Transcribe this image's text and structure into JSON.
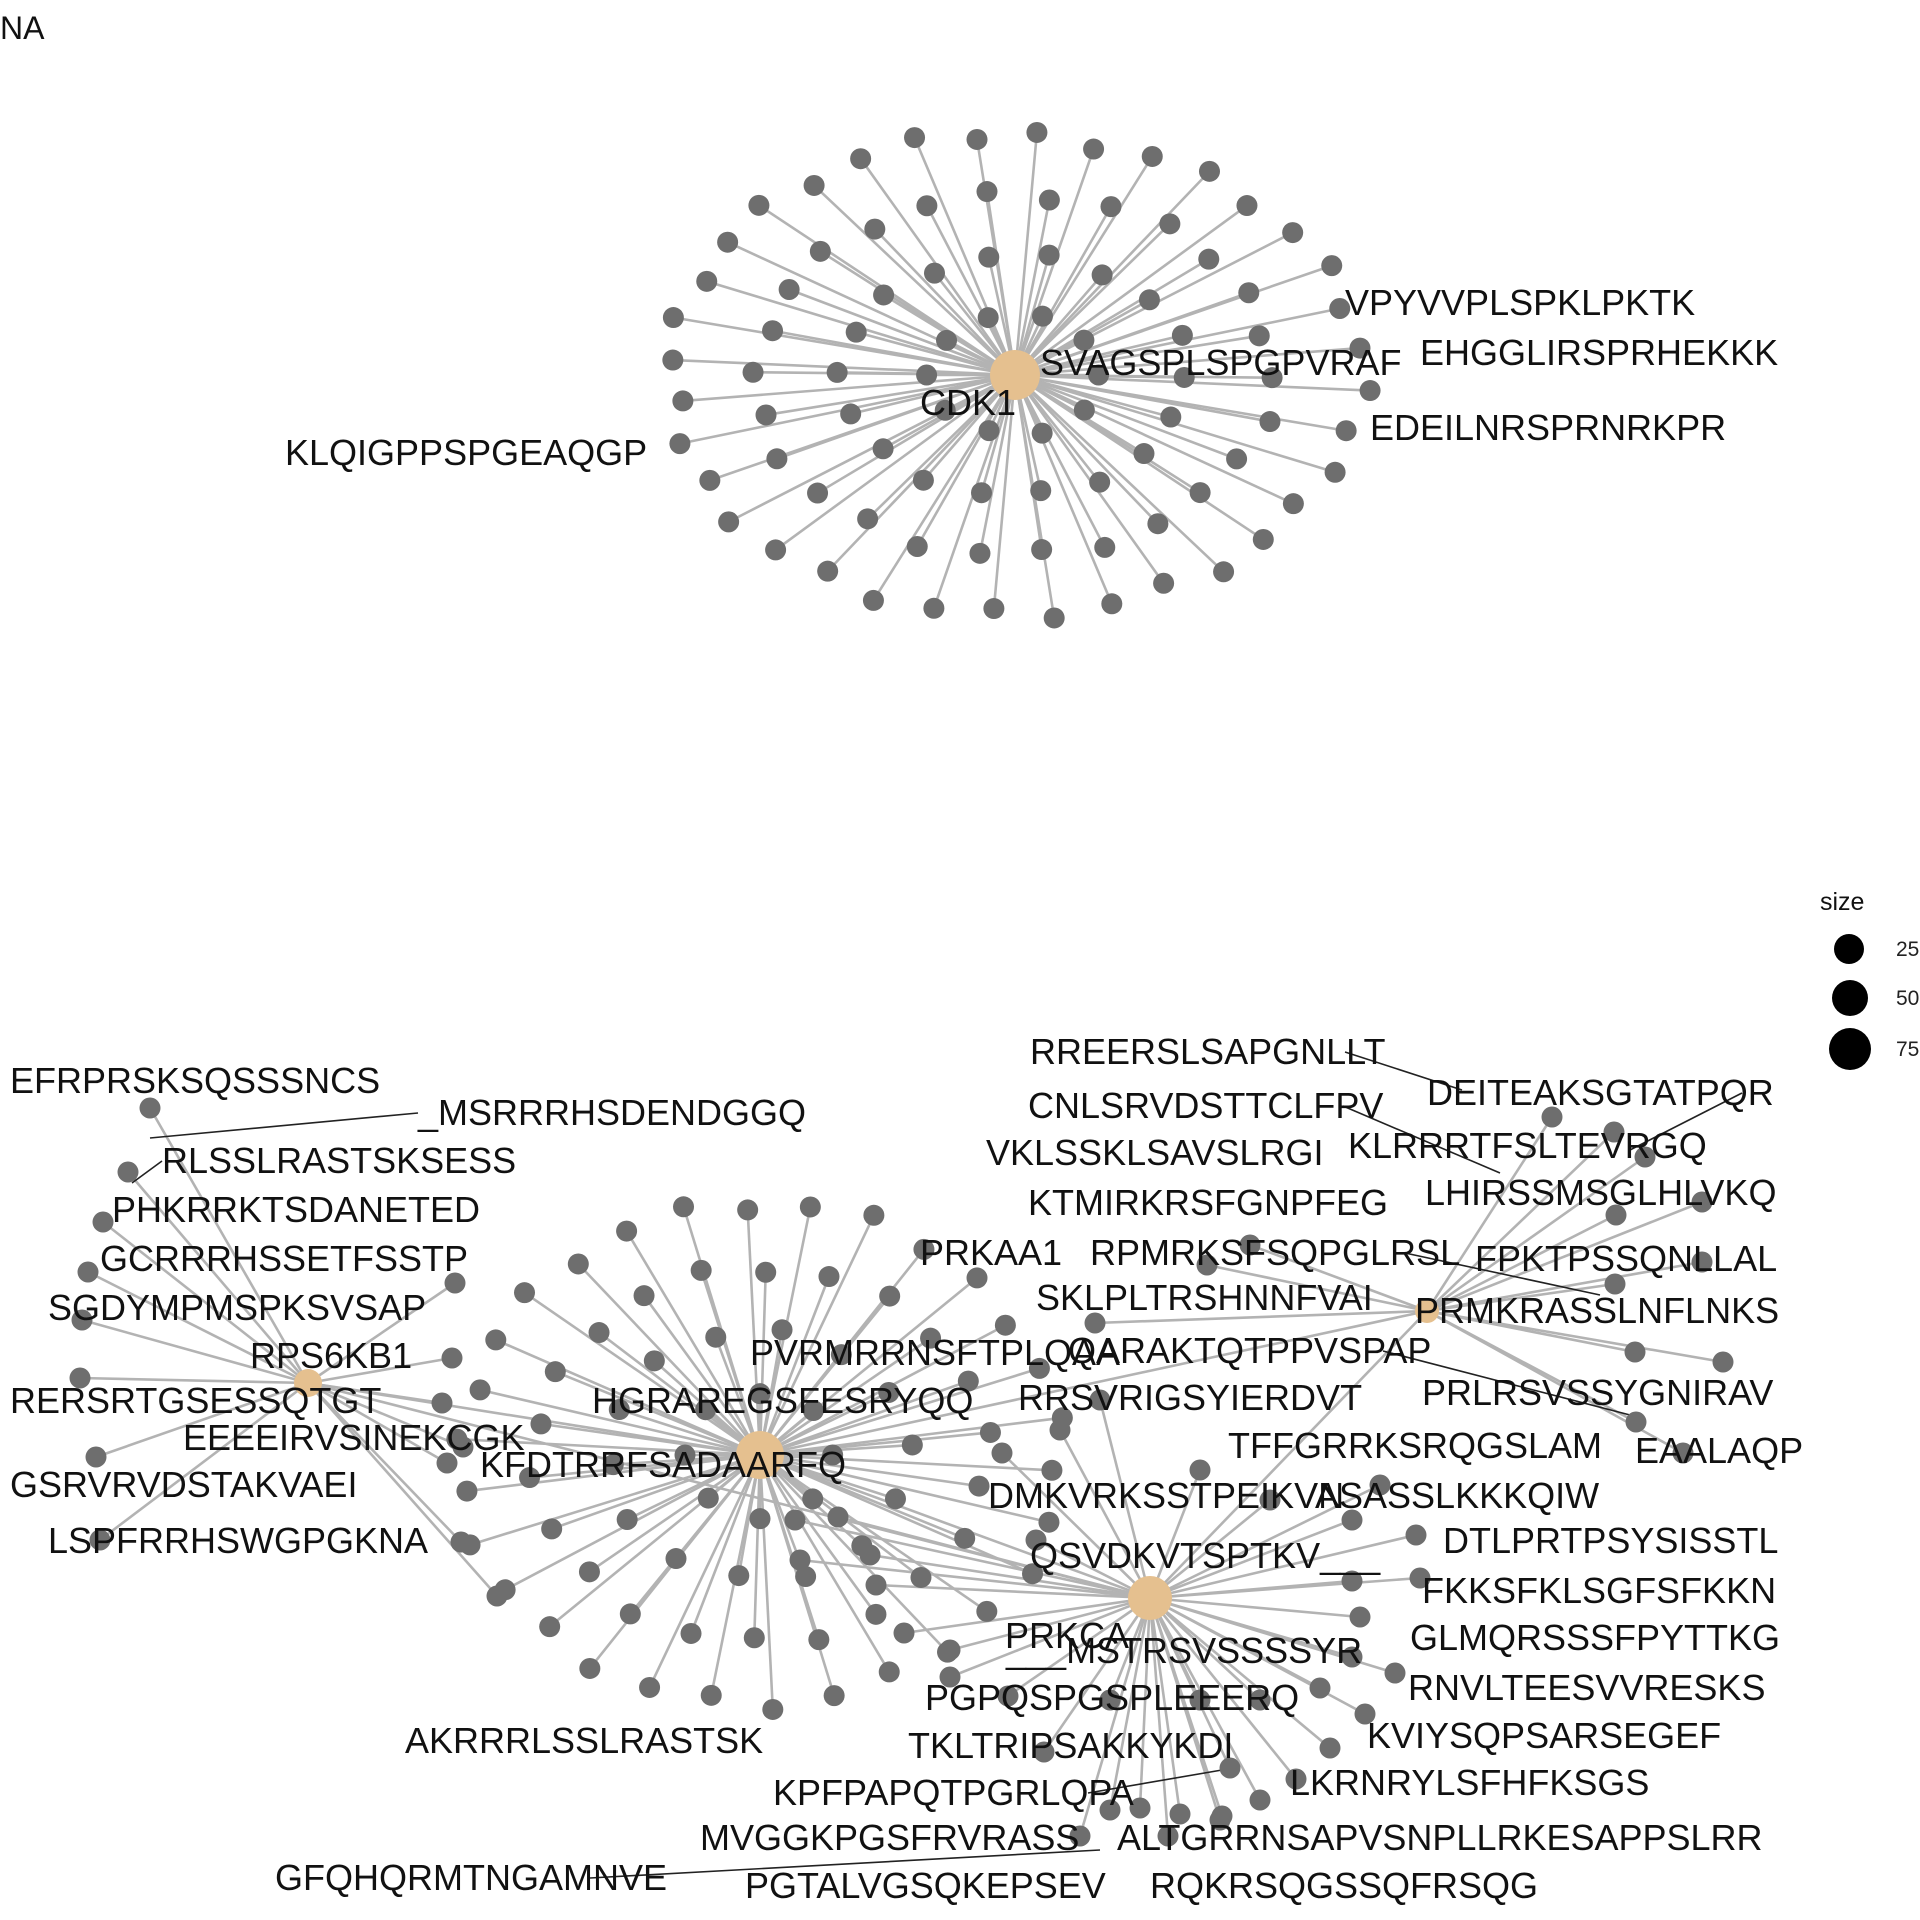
{
  "corner_label": "NA",
  "legend": {
    "title": "size",
    "items": [
      "25",
      "50",
      "75"
    ]
  },
  "colors": {
    "hub": "#E5C08F",
    "leaf": "#6E6E6E",
    "edge": "#B3B3B3",
    "label_line": "#222222",
    "text": "#111111"
  },
  "hubs": [
    "CDK1",
    "PRKCA",
    "RPS6KB1",
    "PRKAA1"
  ],
  "labels": [
    "VPYVVPLSPKLPKTK",
    "SVAGSPLSPGPVRAF",
    "EHGGLIRSPRHEKKK",
    "EDEILNRSPRNRKPR",
    "KLQIGPPSPGEAQGP",
    "EFRPRSKSQSSSNCS",
    "_MSRRRHSDENDGGQ",
    "RLSSLRASTSKSESS",
    "PHKRRKTSDANETED",
    "GCRRRHSSETFSSTP",
    "SGDYMPMSPKSVSAP",
    "RERSRTGSESSQTGT",
    "EEEEIRVSINEKCGK",
    "GSRVRVDSTAKVAEI",
    "LSPFRRHSWGPGKNA",
    "AKRRRLSSLRASTSK",
    "HGRAREGSFESRYQQ",
    "KFDTRRFSADAARFQ",
    "PVRMRRNSFTPLQAA",
    "RREERSLSAPGNLLT",
    "DEITEAKSGTATPQR",
    "CNLSRVDSTTCLFPV",
    "KLRRRTFSLTEVRGQ",
    "VKLSSKLSAVSLRGI",
    "LHIRSSMSGLHLVKQ",
    "KTMIRKRSFGNPFEG",
    "RPMRKSFSQPGLRSL",
    "FPKTPSSQNLLAL",
    "SKLPLTRSHNNFVAI",
    "PRMKRASSLNFLNKS",
    "QARAKTQTPPVSPAP",
    "PRLRSVSSYGNIRAV",
    "RRSVRIGSYIERDVT",
    "TFFGRRKSRQGSLAM",
    "EAALAQP",
    "DMKVRKSSTPEIKVN",
    "ASASSLKKKQIW",
    "DTLPRTPSYSISSTL",
    "QSVDKVTSPTKV___",
    "FKKSFKLSGFSFKKN",
    "GLMQRSSSFPYTTKG",
    "___MSTRSVSSSSYR",
    "RNVLTEESVVRESKS",
    "PGPQSPGSPLEEERQ",
    "KVIYSQPSARSEGEF",
    "TKLTRIPSAKKYKDI",
    "LKRNRYLSFHFKSGS",
    "KPFPAPQTPGRLQPA",
    "MVGGKPGSFRVRASS",
    "ALTGRRNSAPVSNPLLRKESAPPSLRR",
    "GFQHQRMTNGAMNVE",
    "PGTALVGSQKEPSEV",
    "RQKRSQGSSQFRSQG"
  ]
}
